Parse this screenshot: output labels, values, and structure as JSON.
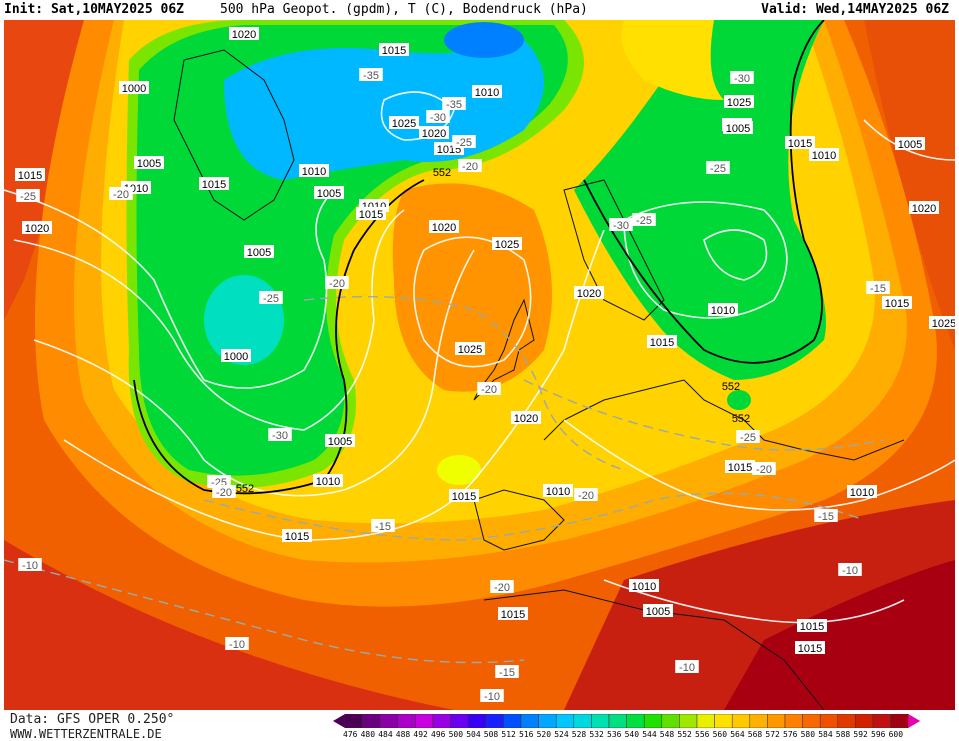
{
  "header": {
    "init": "Init: Sat,10MAY2025 06Z",
    "title": "500 hPa Geopot. (gpdm), T (C), Bodendruck (hPa)",
    "valid": "Valid: Wed,14MAY2025 06Z"
  },
  "footer": {
    "data_source": "Data: GFS OPER 0.250°",
    "website": "WWW.WETTERZENTRALE.DE"
  },
  "legend": {
    "values": [
      "476",
      "480",
      "484",
      "488",
      "492",
      "496",
      "500",
      "504",
      "508",
      "512",
      "516",
      "520",
      "524",
      "528",
      "532",
      "536",
      "540",
      "544",
      "548",
      "552",
      "556",
      "560",
      "564",
      "568",
      "572",
      "576",
      "580",
      "584",
      "588",
      "592",
      "596",
      "600"
    ],
    "colors": [
      "#4b0055",
      "#6a0080",
      "#8a00a8",
      "#aa00c8",
      "#c800e0",
      "#9a00e6",
      "#6a00f0",
      "#3a00f6",
      "#1a20ff",
      "#0050ff",
      "#0080ff",
      "#00a8ff",
      "#00c8ff",
      "#00d8e0",
      "#00e0b0",
      "#00e080",
      "#00e040",
      "#20e000",
      "#60e000",
      "#a0e800",
      "#e8f000",
      "#ffe000",
      "#ffc800",
      "#ffb000",
      "#ff9800",
      "#ff8000",
      "#f86800",
      "#f05000",
      "#e03800",
      "#d02000",
      "#c01010",
      "#a00010"
    ],
    "arrow_left_color": "#4b0055",
    "arrow_right_color": "#e800b0"
  },
  "map": {
    "pressure_labels": [
      "1020",
      "1015",
      "1000",
      "1005",
      "1015",
      "1010",
      "1020",
      "1005",
      "1000",
      "1015",
      "1005",
      "1010",
      "1015",
      "1020",
      "1025",
      "1020",
      "1010",
      "1015",
      "1010",
      "1025",
      "1020",
      "1025",
      "1015",
      "1020",
      "1025",
      "1015",
      "1020",
      "1010",
      "1005",
      "1005",
      "1015",
      "1020",
      "1025",
      "1010",
      "1015",
      "1005",
      "1000",
      "1010",
      "1015",
      "1010",
      "1015",
      "1015",
      "1010",
      "1005",
      "1015",
      "1015",
      "1010"
    ],
    "temperature_labels": [
      "-35",
      "-30",
      "-35",
      "-25",
      "-20",
      "-25",
      "-20",
      "-30",
      "-25",
      "-25",
      "-30",
      "-15",
      "-25",
      "-20",
      "-20",
      "-20",
      "-30",
      "-25",
      "-20",
      "-15",
      "-15",
      "-10",
      "-20",
      "-10",
      "-15",
      "-10",
      "-10",
      "-10",
      "-25",
      "-20"
    ],
    "height_labels": [
      "552",
      "552",
      "552",
      "552"
    ]
  }
}
